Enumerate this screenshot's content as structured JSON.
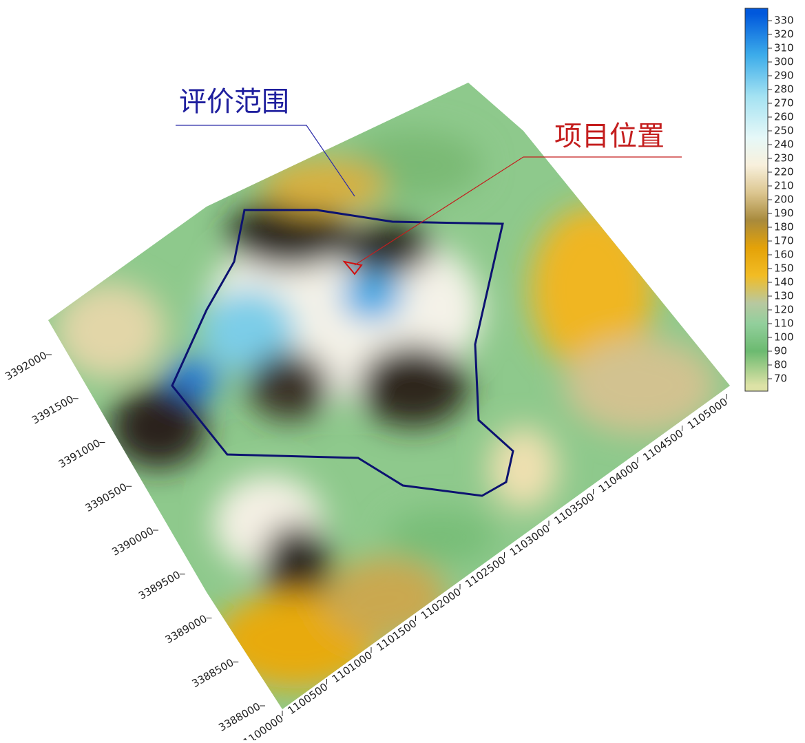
{
  "annotations": [
    {
      "text": "评价范围",
      "color": "#1f1f9e"
    },
    {
      "text": "项目位置",
      "color": "#c41e1e"
    }
  ],
  "colorbar": {
    "clim": [
      61,
      339
    ],
    "ticks": [
      70,
      80,
      90,
      100,
      110,
      120,
      130,
      140,
      150,
      160,
      170,
      180,
      190,
      200,
      210,
      220,
      230,
      240,
      250,
      260,
      270,
      280,
      290,
      300,
      310,
      320,
      330
    ],
    "stops": [
      {
        "value": 65,
        "color": "#dde2a6"
      },
      {
        "value": 90,
        "color": "#6cba70"
      },
      {
        "value": 110,
        "color": "#92cf9c"
      },
      {
        "value": 125,
        "color": "#b8c8a0"
      },
      {
        "value": 145,
        "color": "#f2bc24"
      },
      {
        "value": 165,
        "color": "#e4a208"
      },
      {
        "value": 185,
        "color": "#a88a3c"
      },
      {
        "value": 205,
        "color": "#dcc690"
      },
      {
        "value": 225,
        "color": "#f8f0dc"
      },
      {
        "value": 245,
        "color": "#e6f8f8"
      },
      {
        "value": 275,
        "color": "#a4e2f2"
      },
      {
        "value": 305,
        "color": "#3cacea"
      },
      {
        "value": 335,
        "color": "#0058dc"
      }
    ]
  },
  "axes": {
    "y": {
      "lim": [
        3388000,
        3392000
      ],
      "ticks": [
        3388000,
        3388500,
        3389000,
        3389500,
        3390000,
        3390500,
        3391000,
        3391500,
        3392000
      ]
    },
    "x": {
      "lim": [
        1100000,
        1105000
      ],
      "ticks": [
        1100000,
        1100500,
        1101000,
        1101500,
        1102000,
        1102500,
        1103000,
        1103500,
        1104000,
        1104500,
        1105000
      ]
    }
  }
}
